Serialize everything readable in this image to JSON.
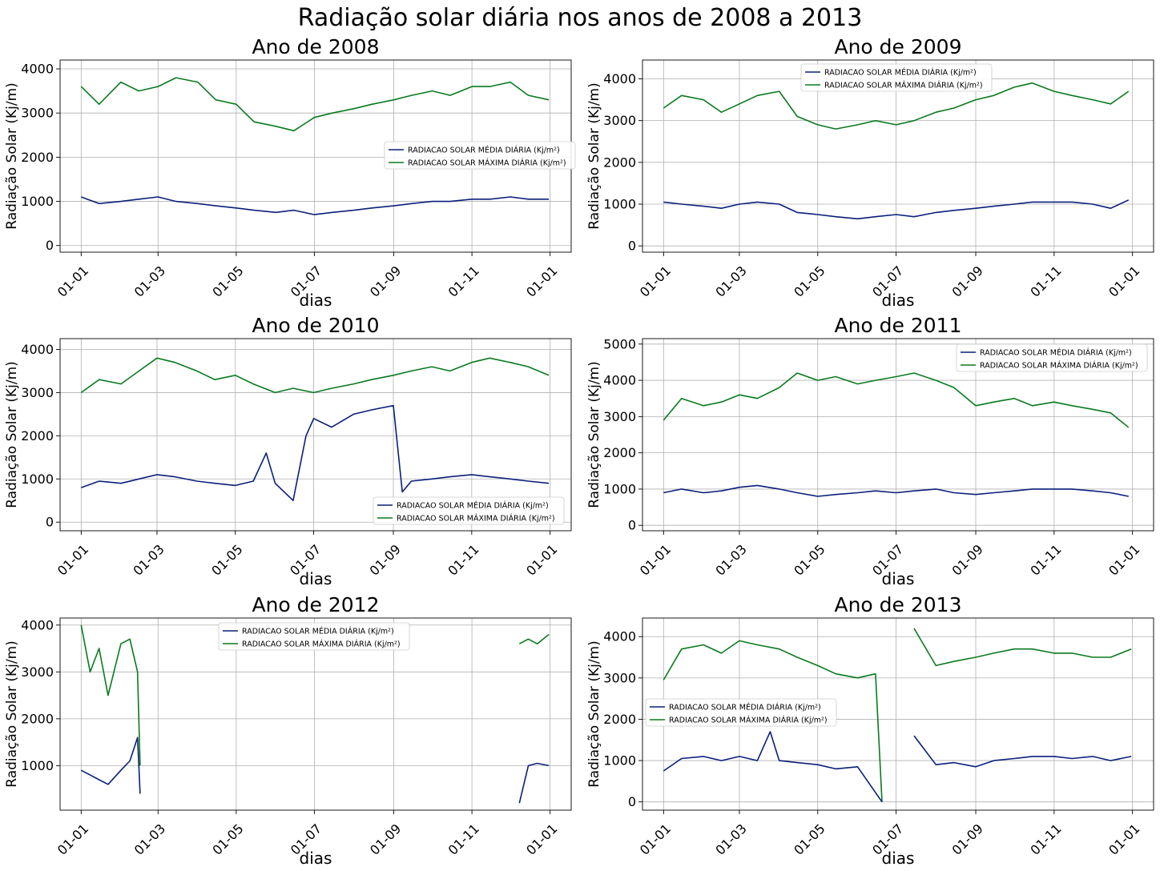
{
  "figure": {
    "title": "Radiação solar diária nos anos de 2008 a 2013"
  },
  "colors": {
    "media": "#0a1f7a",
    "maxima": "#0a7a1f"
  },
  "legend_labels": {
    "media": "RADIACAO SOLAR MÉDIA DIÁRIA (Kj/m²)",
    "maxima": "RADIACAO SOLAR MÁXIMA DIÁRIA (Kj/m²)"
  },
  "chart_data": [
    {
      "type": "line",
      "title": "Ano de 2008",
      "xlabel": "dias",
      "ylabel": "Radiação Solar (Kj/m)",
      "x_ticks": [
        "01-01",
        "01-03",
        "01-05",
        "01-07",
        "01-09",
        "01-11",
        "01-01"
      ],
      "y_ticks": [
        0,
        1000,
        2000,
        3000,
        4000
      ],
      "ylim": [
        -150,
        4200
      ],
      "grid": true,
      "legend": "center-right",
      "series": [
        {
          "name": "RADIACAO SOLAR MÉDIA DIÁRIA (Kj/m²)",
          "x": [
            "2008-01-01",
            "2008-01-15",
            "2008-02-01",
            "2008-02-15",
            "2008-03-01",
            "2008-03-15",
            "2008-04-01",
            "2008-04-15",
            "2008-05-01",
            "2008-05-15",
            "2008-06-01",
            "2008-06-15",
            "2008-07-01",
            "2008-07-15",
            "2008-08-01",
            "2008-08-15",
            "2008-09-01",
            "2008-09-15",
            "2008-10-01",
            "2008-10-15",
            "2008-11-01",
            "2008-11-15",
            "2008-12-01",
            "2008-12-15",
            "2008-12-31"
          ],
          "values": [
            1100,
            950,
            1000,
            1050,
            1100,
            1000,
            950,
            900,
            850,
            800,
            750,
            800,
            700,
            750,
            800,
            850,
            900,
            950,
            1000,
            1000,
            1050,
            1050,
            1100,
            1050,
            1050
          ]
        },
        {
          "name": "RADIACAO SOLAR MÁXIMA DIÁRIA (Kj/m²)",
          "x": [
            "2008-01-01",
            "2008-01-15",
            "2008-02-01",
            "2008-02-15",
            "2008-03-01",
            "2008-03-15",
            "2008-04-01",
            "2008-04-15",
            "2008-05-01",
            "2008-05-15",
            "2008-06-01",
            "2008-06-15",
            "2008-07-01",
            "2008-07-15",
            "2008-08-01",
            "2008-08-15",
            "2008-09-01",
            "2008-09-15",
            "2008-10-01",
            "2008-10-15",
            "2008-11-01",
            "2008-11-15",
            "2008-12-01",
            "2008-12-15",
            "2008-12-31"
          ],
          "values": [
            3600,
            3200,
            3700,
            3500,
            3600,
            3800,
            3700,
            3300,
            3200,
            2800,
            2700,
            2600,
            2900,
            3000,
            3100,
            3200,
            3300,
            3400,
            3500,
            3400,
            3600,
            3600,
            3700,
            3400,
            3300
          ]
        }
      ]
    },
    {
      "type": "line",
      "title": "Ano de 2009",
      "xlabel": "dias",
      "ylabel": "Radiação Solar (Kj/m)",
      "x_ticks": [
        "01-01",
        "01-03",
        "01-05",
        "01-07",
        "01-09",
        "01-11",
        "01-01"
      ],
      "y_ticks": [
        0,
        1000,
        2000,
        3000,
        4000
      ],
      "ylim": [
        -150,
        4450
      ],
      "grid": true,
      "legend": "upper-center",
      "series": [
        {
          "name": "RADIACAO SOLAR MÉDIA DIÁRIA (Kj/m²)",
          "x": [
            "2009-01-01",
            "2009-01-15",
            "2009-02-01",
            "2009-02-15",
            "2009-03-01",
            "2009-03-15",
            "2009-04-01",
            "2009-04-15",
            "2009-05-01",
            "2009-05-15",
            "2009-06-01",
            "2009-06-15",
            "2009-07-01",
            "2009-07-15",
            "2009-08-01",
            "2009-08-15",
            "2009-09-01",
            "2009-09-15",
            "2009-10-01",
            "2009-10-15",
            "2009-11-01",
            "2009-11-15",
            "2009-12-01",
            "2009-12-15",
            "2009-12-29"
          ],
          "values": [
            1050,
            1000,
            950,
            900,
            1000,
            1050,
            1000,
            800,
            750,
            700,
            650,
            700,
            750,
            700,
            800,
            850,
            900,
            950,
            1000,
            1050,
            1050,
            1050,
            1000,
            900,
            1100
          ]
        },
        {
          "name": "RADIACAO SOLAR MÁXIMA DIÁRIA (Kj/m²)",
          "x": [
            "2009-01-01",
            "2009-01-15",
            "2009-02-01",
            "2009-02-15",
            "2009-03-01",
            "2009-03-15",
            "2009-04-01",
            "2009-04-15",
            "2009-05-01",
            "2009-05-15",
            "2009-06-01",
            "2009-06-15",
            "2009-07-01",
            "2009-07-15",
            "2009-08-01",
            "2009-08-15",
            "2009-09-01",
            "2009-09-15",
            "2009-10-01",
            "2009-10-15",
            "2009-11-01",
            "2009-11-15",
            "2009-12-01",
            "2009-12-15",
            "2009-12-29"
          ],
          "values": [
            3300,
            3600,
            3500,
            3200,
            3400,
            3600,
            3700,
            3100,
            2900,
            2800,
            2900,
            3000,
            2900,
            3000,
            3200,
            3300,
            3500,
            3600,
            3800,
            3900,
            3700,
            3600,
            3500,
            3400,
            3700
          ]
        }
      ]
    },
    {
      "type": "line",
      "title": "Ano de 2010",
      "xlabel": "dias",
      "ylabel": "Radiação Solar (Kj/m)",
      "x_ticks": [
        "01-01",
        "01-03",
        "01-05",
        "01-07",
        "01-09",
        "01-11",
        "01-01"
      ],
      "y_ticks": [
        0,
        1000,
        2000,
        3000,
        4000
      ],
      "ylim": [
        -200,
        4250
      ],
      "grid": true,
      "legend": "lower-right",
      "series": [
        {
          "name": "RADIACAO SOLAR MÉDIA DIÁRIA (Kj/m²)",
          "x": [
            "2010-01-01",
            "2010-01-15",
            "2010-02-01",
            "2010-02-15",
            "2010-03-01",
            "2010-03-15",
            "2010-04-01",
            "2010-04-15",
            "2010-05-01",
            "2010-05-15",
            "2010-05-25",
            "2010-06-01",
            "2010-06-15",
            "2010-06-25",
            "2010-07-01",
            "2010-07-15",
            "2010-08-01",
            "2010-08-15",
            "2010-09-01",
            "2010-09-08",
            "2010-09-15",
            "2010-10-01",
            "2010-10-15",
            "2010-11-01",
            "2010-11-15",
            "2010-12-01",
            "2010-12-15",
            "2010-12-31"
          ],
          "values": [
            800,
            950,
            900,
            1000,
            1100,
            1050,
            950,
            900,
            850,
            950,
            1600,
            900,
            500,
            2000,
            2400,
            2200,
            2500,
            2600,
            2700,
            700,
            950,
            1000,
            1050,
            1100,
            1050,
            1000,
            950,
            900
          ]
        },
        {
          "name": "RADIACAO SOLAR MÁXIMA DIÁRIA (Kj/m²)",
          "x": [
            "2010-01-01",
            "2010-01-15",
            "2010-02-01",
            "2010-02-15",
            "2010-03-01",
            "2010-03-15",
            "2010-04-01",
            "2010-04-15",
            "2010-05-01",
            "2010-05-15",
            "2010-06-01",
            "2010-06-15",
            "2010-07-01",
            "2010-07-15",
            "2010-08-01",
            "2010-08-15",
            "2010-09-01",
            "2010-09-15",
            "2010-10-01",
            "2010-10-15",
            "2010-11-01",
            "2010-11-15",
            "2010-12-01",
            "2010-12-15",
            "2010-12-31"
          ],
          "values": [
            3000,
            3300,
            3200,
            3500,
            3800,
            3700,
            3500,
            3300,
            3400,
            3200,
            3000,
            3100,
            3000,
            3100,
            3200,
            3300,
            3400,
            3500,
            3600,
            3500,
            3700,
            3800,
            3700,
            3600,
            3400
          ]
        }
      ]
    },
    {
      "type": "line",
      "title": "Ano de 2011",
      "xlabel": "dias",
      "ylabel": "Radiação Solar (Kj/m)",
      "x_ticks": [
        "01-01",
        "01-03",
        "01-05",
        "01-07",
        "01-09",
        "01-11",
        "01-01"
      ],
      "y_ticks": [
        0,
        1000,
        2000,
        3000,
        4000,
        5000
      ],
      "ylim": [
        -150,
        5150
      ],
      "grid": true,
      "legend": "upper-right",
      "series": [
        {
          "name": "RADIACAO SOLAR MÉDIA DIÁRIA (Kj/m²)",
          "x": [
            "2011-01-01",
            "2011-01-15",
            "2011-02-01",
            "2011-02-15",
            "2011-03-01",
            "2011-03-15",
            "2011-04-01",
            "2011-04-15",
            "2011-05-01",
            "2011-05-15",
            "2011-06-01",
            "2011-06-15",
            "2011-07-01",
            "2011-07-15",
            "2011-08-01",
            "2011-08-15",
            "2011-09-01",
            "2011-09-15",
            "2011-10-01",
            "2011-10-15",
            "2011-11-01",
            "2011-11-15",
            "2011-12-01",
            "2011-12-15",
            "2011-12-29"
          ],
          "values": [
            900,
            1000,
            900,
            950,
            1050,
            1100,
            1000,
            900,
            800,
            850,
            900,
            950,
            900,
            950,
            1000,
            900,
            850,
            900,
            950,
            1000,
            1000,
            1000,
            950,
            900,
            800
          ]
        },
        {
          "name": "RADIACAO SOLAR MÁXIMA DIÁRIA (Kj/m²)",
          "x": [
            "2011-01-01",
            "2011-01-15",
            "2011-02-01",
            "2011-02-15",
            "2011-03-01",
            "2011-03-15",
            "2011-04-01",
            "2011-04-15",
            "2011-05-01",
            "2011-05-15",
            "2011-06-01",
            "2011-06-15",
            "2011-07-01",
            "2011-07-15",
            "2011-08-01",
            "2011-08-15",
            "2011-09-01",
            "2011-09-15",
            "2011-10-01",
            "2011-10-15",
            "2011-11-01",
            "2011-11-15",
            "2011-12-01",
            "2011-12-15",
            "2011-12-29"
          ],
          "values": [
            2900,
            3500,
            3300,
            3400,
            3600,
            3500,
            3800,
            4200,
            4000,
            4100,
            3900,
            4000,
            4100,
            4200,
            4000,
            3800,
            3300,
            3400,
            3500,
            3300,
            3400,
            3300,
            3200,
            3100,
            2700
          ]
        }
      ]
    },
    {
      "type": "line",
      "title": "Ano de 2012",
      "xlabel": "dias",
      "ylabel": "Radiação Solar (Kj/m)",
      "x_ticks": [
        "01-01",
        "01-03",
        "01-05",
        "01-07",
        "01-09",
        "01-11",
        "01-01"
      ],
      "y_ticks": [
        1000,
        2000,
        3000,
        4000
      ],
      "ylim": [
        50,
        4150
      ],
      "grid": true,
      "legend": "upper-center",
      "series": [
        {
          "name": "RADIACAO SOLAR MÉDIA DIÁRIA (Kj/m²)",
          "x": [
            "2012-01-01",
            "2012-01-08",
            "2012-01-15",
            "2012-01-22",
            "2012-02-01",
            "2012-02-08",
            "2012-02-14",
            "2012-02-16",
            null,
            "2012-12-08",
            "2012-12-15",
            "2012-12-22",
            "2012-12-31"
          ],
          "values": [
            900,
            800,
            700,
            600,
            900,
            1100,
            1600,
            400,
            null,
            200,
            1000,
            1050,
            1000
          ]
        },
        {
          "name": "RADIACAO SOLAR MÁXIMA DIÁRIA (Kj/m²)",
          "x": [
            "2012-01-01",
            "2012-01-08",
            "2012-01-15",
            "2012-01-22",
            "2012-02-01",
            "2012-02-08",
            "2012-02-14",
            "2012-02-16",
            null,
            "2012-12-08",
            "2012-12-15",
            "2012-12-22",
            "2012-12-31"
          ],
          "values": [
            4000,
            3000,
            3500,
            2500,
            3600,
            3700,
            3000,
            1000,
            null,
            3600,
            3700,
            3600,
            3800
          ]
        }
      ]
    },
    {
      "type": "line",
      "title": "Ano de 2013",
      "xlabel": "dias",
      "ylabel": "Radiação Solar (Kj/m)",
      "x_ticks": [
        "01-01",
        "01-03",
        "01-05",
        "01-07",
        "01-09",
        "01-11",
        "01-01"
      ],
      "y_ticks": [
        0,
        1000,
        2000,
        3000,
        4000
      ],
      "ylim": [
        -200,
        4450
      ],
      "grid": true,
      "legend": "center-left",
      "series": [
        {
          "name": "RADIACAO SOLAR MÉDIA DIÁRIA (Kj/m²)",
          "x": [
            "2013-01-01",
            "2013-01-15",
            "2013-02-01",
            "2013-02-15",
            "2013-03-01",
            "2013-03-15",
            "2013-03-25",
            "2013-04-01",
            "2013-04-15",
            "2013-05-01",
            "2013-05-15",
            "2013-06-01",
            "2013-06-20",
            null,
            "2013-07-15",
            "2013-08-01",
            "2013-08-15",
            "2013-09-01",
            "2013-09-15",
            "2013-10-01",
            "2013-10-15",
            "2013-11-01",
            "2013-11-15",
            "2013-12-01",
            "2013-12-15",
            "2013-12-31"
          ],
          "values": [
            750,
            1050,
            1100,
            1000,
            1100,
            1000,
            1700,
            1000,
            950,
            900,
            800,
            850,
            0,
            null,
            1600,
            900,
            950,
            850,
            1000,
            1050,
            1100,
            1100,
            1050,
            1100,
            1000,
            1100
          ]
        },
        {
          "name": "RADIACAO SOLAR MÁXIMA DIÁRIA (Kj/m²)",
          "x": [
            "2013-01-01",
            "2013-01-15",
            "2013-02-01",
            "2013-02-15",
            "2013-03-01",
            "2013-03-15",
            "2013-04-01",
            "2013-04-15",
            "2013-05-01",
            "2013-05-15",
            "2013-06-01",
            "2013-06-15",
            "2013-06-20",
            null,
            "2013-07-15",
            "2013-08-01",
            "2013-08-15",
            "2013-09-01",
            "2013-09-15",
            "2013-10-01",
            "2013-10-15",
            "2013-11-01",
            "2013-11-15",
            "2013-12-01",
            "2013-12-15",
            "2013-12-31"
          ],
          "values": [
            2950,
            3700,
            3800,
            3600,
            3900,
            3800,
            3700,
            3500,
            3300,
            3100,
            3000,
            3100,
            0,
            null,
            4200,
            3300,
            3400,
            3500,
            3600,
            3700,
            3700,
            3600,
            3600,
            3500,
            3500,
            3700
          ]
        }
      ]
    }
  ]
}
